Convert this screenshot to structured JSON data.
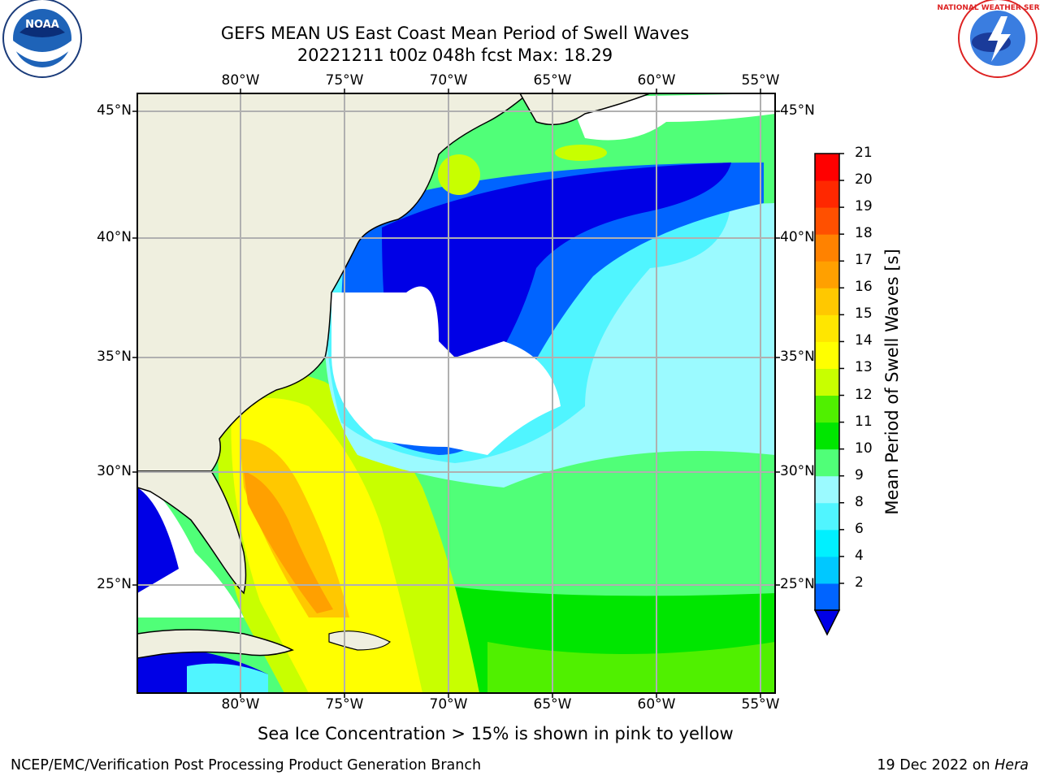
{
  "header": {
    "title_line1": "GEFS MEAN US East Coast Mean Period of Swell Waves",
    "title_line2": "20221211 t00z 048h fcst   Max: 18.29",
    "left_logo_text": "NOAA",
    "right_logo_text": "NATIONAL WEATHER SERVICE"
  },
  "map": {
    "lon_ticks": [
      "80°W",
      "75°W",
      "70°W",
      "65°W",
      "60°W",
      "55°W"
    ],
    "lat_ticks": [
      "45°N",
      "40°N",
      "35°N",
      "30°N",
      "25°N"
    ],
    "extent": {
      "lon_min": -85,
      "lon_max": -54.3,
      "lat_min": 20,
      "lat_max": 46
    },
    "colors": {
      "land": "#efefdf",
      "gridline": "#b0b0b0",
      "missing": "#ffffff"
    }
  },
  "colorbar": {
    "label": "Mean Period of Swell Waves [s]",
    "ticks": [
      "21",
      "20",
      "19",
      "18",
      "17",
      "16",
      "15",
      "14",
      "13",
      "12",
      "11",
      "10",
      "9",
      "8",
      "6",
      "4",
      "2"
    ],
    "levels": [
      2,
      4,
      6,
      8,
      9,
      10,
      11,
      12,
      13,
      14,
      15,
      16,
      17,
      18,
      19,
      20,
      21
    ],
    "colors": [
      "#0064ff",
      "#00c8ff",
      "#00f0ff",
      "#50f5ff",
      "#9bfaff",
      "#50ff78",
      "#00e600",
      "#50f000",
      "#c8ff00",
      "#ffff00",
      "#ffe600",
      "#ffc800",
      "#ffa000",
      "#ff8200",
      "#ff5000",
      "#ff2800",
      "#ff0000"
    ],
    "under_color": "#0000e6"
  },
  "annotation": "Sea Ice Concentration > 15% is shown in pink to yellow",
  "footer": {
    "left": "NCEP/EMC/Verification Post Processing Product Generation Branch",
    "right_date": "19 Dec 2022 on ",
    "right_machine": "Hera"
  }
}
